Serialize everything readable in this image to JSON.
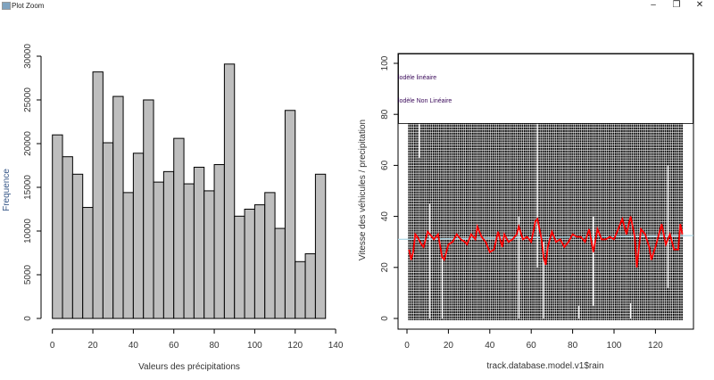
{
  "window": {
    "title": "Plot Zoom",
    "controls": {
      "minimize": "–",
      "maximize": "❐",
      "close": "✕"
    }
  },
  "chart_data": [
    {
      "type": "bar",
      "title": "",
      "xlabel": "Valeurs des précipitations",
      "ylabel": "Frequence",
      "bin_start": 0,
      "bin_width": 5,
      "values": [
        21000,
        18500,
        16500,
        12700,
        28200,
        20100,
        25400,
        14400,
        18900,
        25000,
        15600,
        16800,
        20600,
        15400,
        17300,
        14600,
        17600,
        29100,
        11700,
        12500,
        13000,
        14400,
        10300,
        23800,
        6500,
        7400,
        16500
      ],
      "xlim": [
        0,
        140
      ],
      "ylim": [
        0,
        30000
      ],
      "xticks": [
        "0",
        "20",
        "40",
        "60",
        "80",
        "100",
        "120",
        "140"
      ],
      "yticks": [
        "0",
        "5000",
        "10000",
        "15000",
        "20000",
        "25000",
        "30000"
      ],
      "bar_color": "#bebebe"
    },
    {
      "type": "scatter",
      "title": "",
      "xlabel": "track.database.model.v1$rain",
      "ylabel": "Vitesse des véhicules / precipitation",
      "xlim": [
        0,
        135
      ],
      "ylim": [
        0,
        100
      ],
      "xticks": [
        "0",
        "20",
        "40",
        "60",
        "80",
        "100",
        "120"
      ],
      "yticks": [
        "0",
        "20",
        "40",
        "60",
        "80",
        "100"
      ],
      "points_description_range": {
        "x": [
          1,
          133
        ],
        "y": [
          0,
          100
        ]
      },
      "legend": [
        "lodèle linéaire",
        "lodèle Non Linéaire"
      ],
      "linear_fit": {
        "color": "#add8e6",
        "y_at_x0": 31,
        "y_at_x135": 32.5
      },
      "nonlinear_fit": {
        "color": "#ff0000",
        "x": [
          1,
          2,
          3,
          4,
          5,
          7,
          8,
          10,
          11,
          13,
          15,
          17,
          18,
          20,
          22,
          24,
          26,
          28,
          29,
          31,
          33,
          34,
          36,
          38,
          40,
          42,
          44,
          46,
          47,
          49,
          51,
          53,
          54,
          56,
          58,
          60,
          62,
          63,
          65,
          66,
          67,
          68,
          70,
          72,
          74,
          76,
          78,
          80,
          82,
          84,
          86,
          88,
          90,
          92,
          94,
          96,
          98,
          100,
          102,
          104,
          106,
          108,
          110,
          111,
          113,
          115,
          117,
          118,
          120,
          122,
          123,
          125,
          127,
          129,
          131,
          132,
          133
        ],
        "y": [
          27,
          23,
          26,
          33,
          32,
          29,
          28,
          34,
          33,
          31,
          33,
          24,
          23,
          29,
          30,
          33,
          31,
          30,
          29,
          33,
          31,
          36,
          32,
          30,
          26,
          27,
          34,
          28,
          33,
          30,
          31,
          33,
          36,
          31,
          32,
          30,
          38,
          39,
          31,
          24,
          21,
          28,
          34,
          30,
          31,
          28,
          30,
          33,
          32,
          32,
          30,
          35,
          26,
          35,
          31,
          31,
          32,
          31,
          35,
          39,
          33,
          40,
          32,
          20,
          35,
          33,
          28,
          23,
          28,
          34,
          37,
          29,
          33,
          27,
          27,
          37,
          33
        ]
      }
    }
  ]
}
